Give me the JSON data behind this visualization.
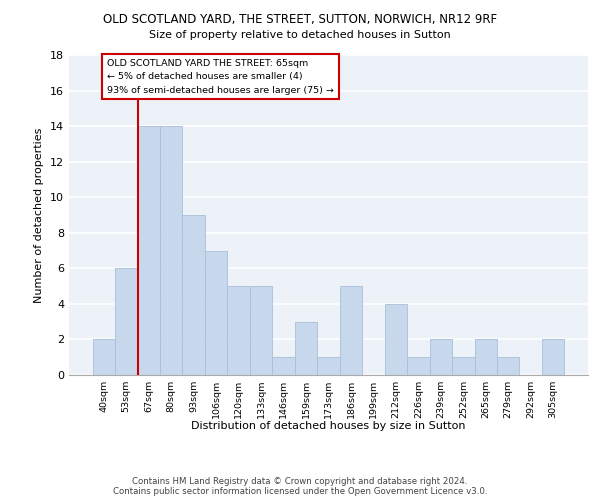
{
  "title1": "OLD SCOTLAND YARD, THE STREET, SUTTON, NORWICH, NR12 9RF",
  "title2": "Size of property relative to detached houses in Sutton",
  "xlabel": "Distribution of detached houses by size in Sutton",
  "ylabel": "Number of detached properties",
  "categories": [
    "40sqm",
    "53sqm",
    "67sqm",
    "80sqm",
    "93sqm",
    "106sqm",
    "120sqm",
    "133sqm",
    "146sqm",
    "159sqm",
    "173sqm",
    "186sqm",
    "199sqm",
    "212sqm",
    "226sqm",
    "239sqm",
    "252sqm",
    "265sqm",
    "279sqm",
    "292sqm",
    "305sqm"
  ],
  "values": [
    2,
    6,
    14,
    14,
    9,
    7,
    5,
    5,
    1,
    3,
    1,
    5,
    0,
    4,
    1,
    2,
    1,
    2,
    1,
    0,
    2
  ],
  "bar_color": "#c8d8ec",
  "bar_edge_color": "#aabfd8",
  "ylim": [
    0,
    18
  ],
  "yticks": [
    0,
    2,
    4,
    6,
    8,
    10,
    12,
    14,
    16,
    18
  ],
  "property_bin_index": 1.5,
  "annotation_text_line1": "OLD SCOTLAND YARD THE STREET: 65sqm",
  "annotation_text_line2": "← 5% of detached houses are smaller (4)",
  "annotation_text_line3": "93% of semi-detached houses are larger (75) →",
  "vline_color": "#cc0000",
  "footer": "Contains HM Land Registry data © Crown copyright and database right 2024.\nContains public sector information licensed under the Open Government Licence v3.0.",
  "background_color": "#edf2f9",
  "grid_color": "#ffffff"
}
